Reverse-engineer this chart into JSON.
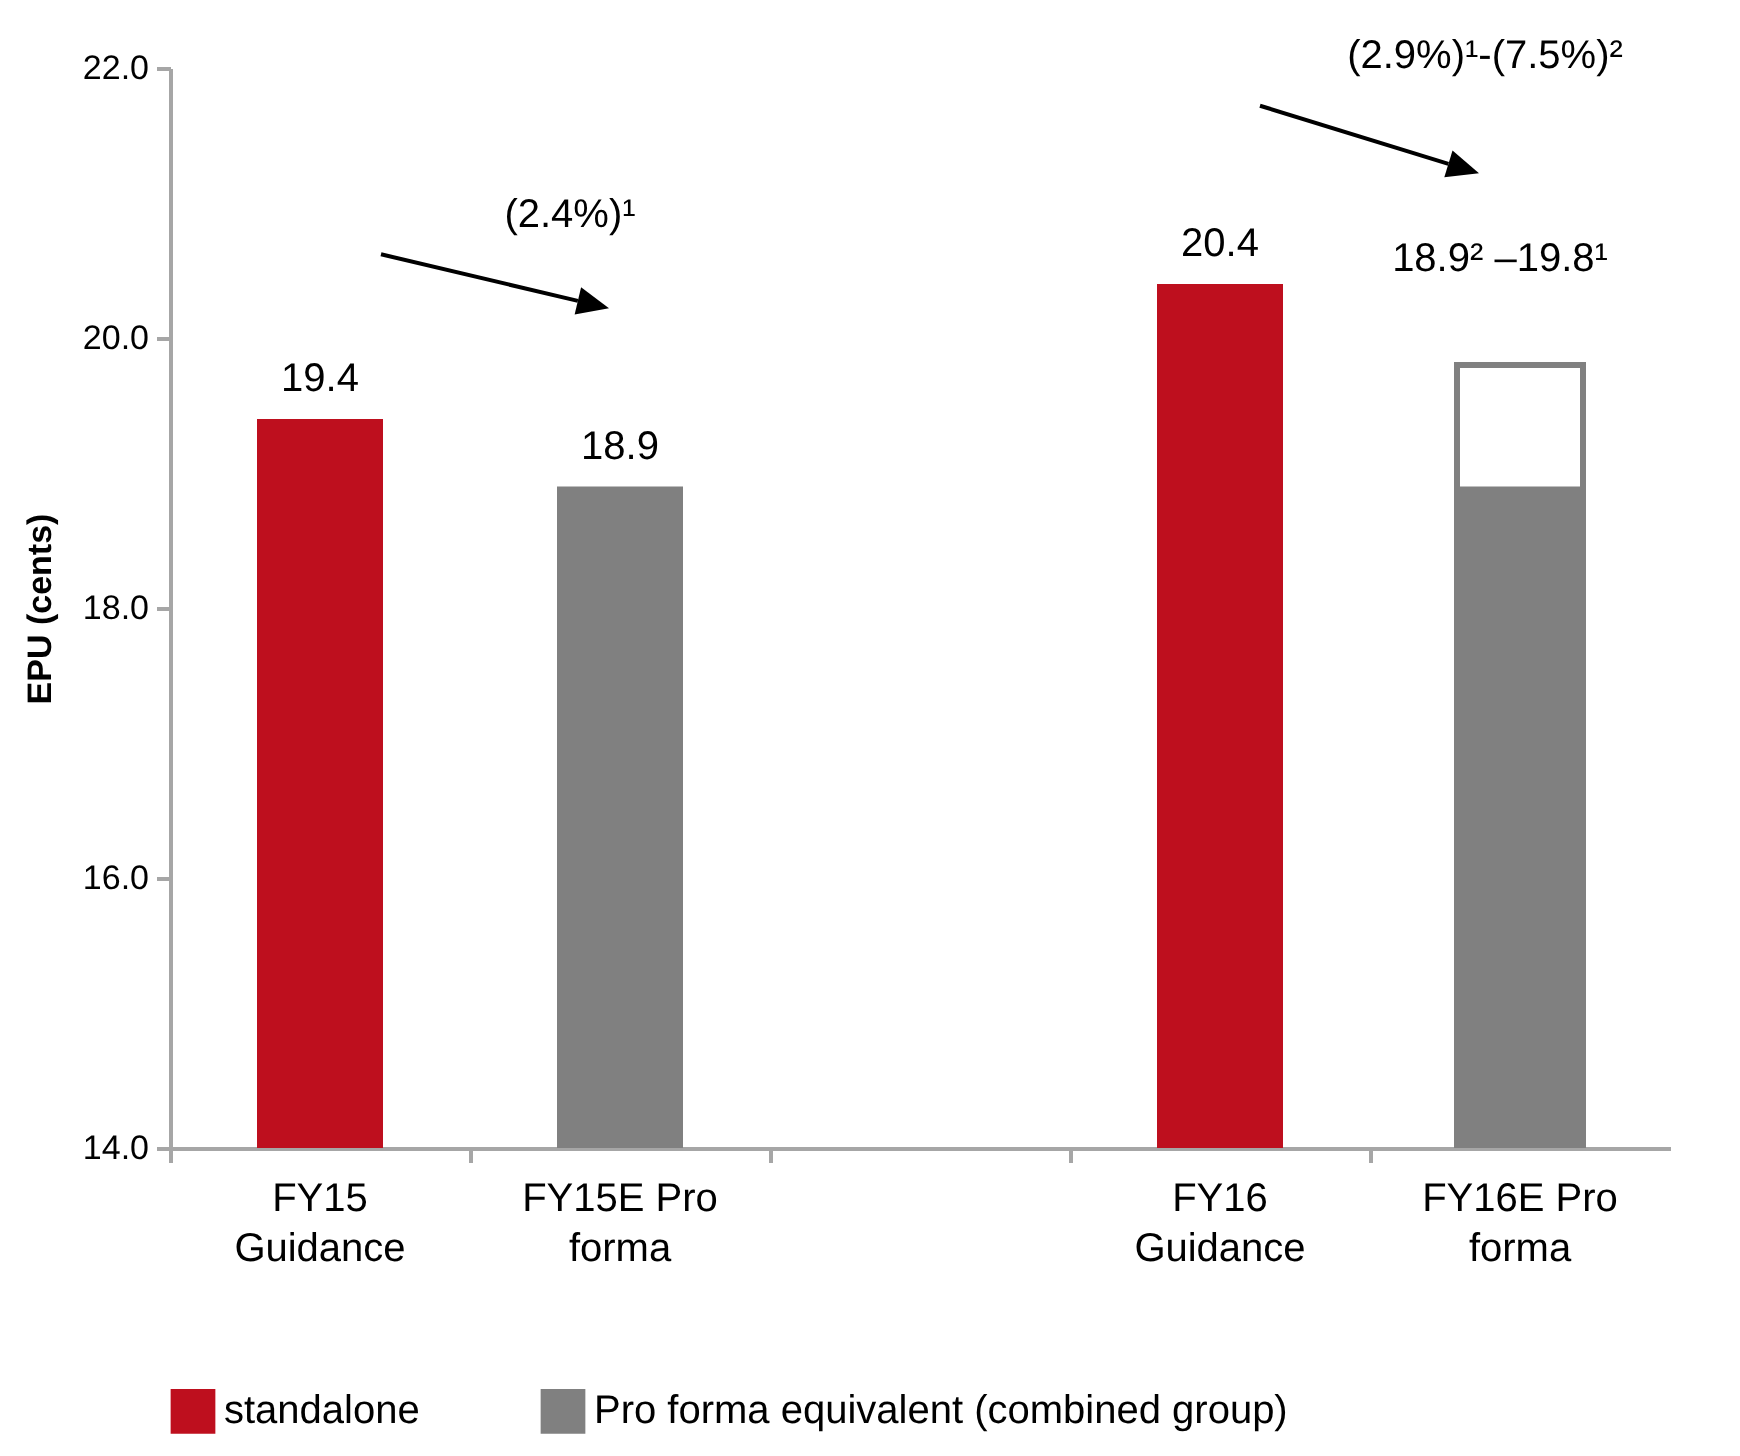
{
  "chart_data": {
    "type": "bar",
    "ylabel": "EPU (cents)",
    "categories": [
      "FY15\nGuidance",
      "FY15E Pro\nforma",
      null,
      "FY16\nGuidance",
      "FY16E Pro\nforma"
    ],
    "series": [
      {
        "color": "#ffffff",
        "values": [
          null,
          null,
          null,
          null,
          19.8
        ]
      },
      {
        "name": "standalone",
        "color": "#be0f1e",
        "values": [
          19.4,
          null,
          null,
          20.4,
          null
        ],
        "value_labels": [
          "19.4",
          null,
          null,
          "20.4",
          null
        ]
      },
      {
        "name": "Pro forma equivalent (combined group)",
        "color": "#808080",
        "values": [
          null,
          18.9,
          null,
          null,
          18.9
        ],
        "value_labels": [
          null,
          "18.9",
          null,
          null,
          null
        ]
      }
    ],
    "ylim": [
      14,
      22
    ],
    "yticks": [
      {
        "value": 14,
        "label": "14.0"
      },
      {
        "value": 16,
        "label": "16.0"
      },
      {
        "value": 18,
        "label": "18.0"
      },
      {
        "value": 20,
        "label": "20.0"
      },
      {
        "value": 22,
        "label": "22.0"
      }
    ],
    "legend": "bottom",
    "annotations": [
      "(2.4%)¹",
      "(2.9%)¹-(7.5%)²",
      {
        "text": "18.9² –19.8¹",
        "x": "FY16E Pro\nforma",
        "y": 19.8
      }
    ]
  }
}
